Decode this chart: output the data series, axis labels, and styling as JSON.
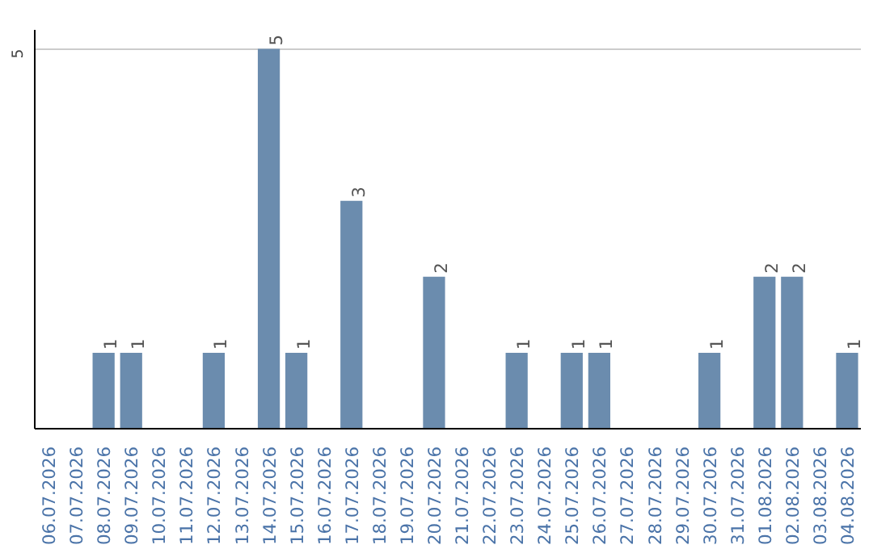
{
  "chart_data": {
    "type": "bar",
    "categories": [
      "06.07.2026",
      "07.07.2026",
      "08.07.2026",
      "09.07.2026",
      "10.07.2026",
      "11.07.2026",
      "12.07.2026",
      "13.07.2026",
      "14.07.2026",
      "15.07.2026",
      "16.07.2026",
      "17.07.2026",
      "18.07.2026",
      "19.07.2026",
      "20.07.2026",
      "21.07.2026",
      "22.07.2026",
      "23.07.2026",
      "24.07.2026",
      "25.07.2026",
      "26.07.2026",
      "27.07.2026",
      "28.07.2026",
      "29.07.2026",
      "30.07.2026",
      "31.07.2026",
      "01.08.2026",
      "02.08.2026",
      "03.08.2026",
      "04.08.2026"
    ],
    "values": [
      0,
      0,
      1,
      1,
      0,
      0,
      1,
      0,
      5,
      1,
      0,
      3,
      0,
      0,
      2,
      0,
      0,
      1,
      0,
      1,
      1,
      0,
      0,
      0,
      1,
      0,
      2,
      2,
      0,
      1
    ],
    "value_labels": [
      null,
      null,
      "1",
      "1",
      null,
      null,
      "1",
      null,
      "5",
      "1",
      null,
      "3",
      null,
      null,
      "2",
      null,
      null,
      "1",
      null,
      "1",
      "1",
      null,
      null,
      null,
      "1",
      null,
      "2",
      "2",
      null,
      "1"
    ],
    "color": "#6b8cae",
    "ylim": [
      0,
      5.25
    ],
    "yticks": [
      5
    ],
    "grid": "y"
  }
}
